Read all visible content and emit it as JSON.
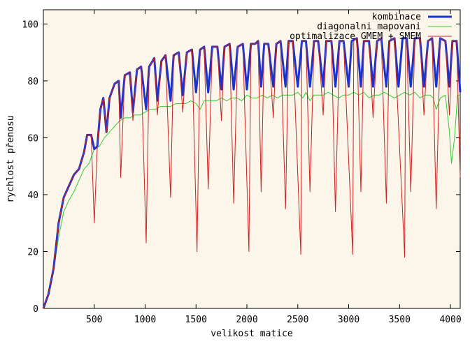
{
  "chart_data": {
    "type": "line",
    "xlabel": "velikost matice",
    "ylabel": "rychlost přenosu",
    "xlim": [
      0,
      4096
    ],
    "ylim": [
      0,
      105
    ],
    "xticks": [
      500,
      1000,
      1500,
      2000,
      2500,
      3000,
      3500,
      4000
    ],
    "yticks": [
      0,
      20,
      40,
      60,
      80,
      100
    ],
    "grid": false,
    "legend_position": "top-right",
    "plot_background": "#fcf6ea",
    "series": [
      {
        "name": "kombinace",
        "color": "#1a33cc",
        "width": 3,
        "points": [
          [
            0,
            0
          ],
          [
            50,
            5
          ],
          [
            100,
            14
          ],
          [
            150,
            30
          ],
          [
            200,
            39
          ],
          [
            250,
            43
          ],
          [
            300,
            47
          ],
          [
            350,
            49
          ],
          [
            400,
            55
          ],
          [
            430,
            61
          ],
          [
            470,
            61
          ],
          [
            500,
            56
          ],
          [
            530,
            57
          ],
          [
            560,
            70
          ],
          [
            590,
            74
          ],
          [
            620,
            62
          ],
          [
            650,
            74
          ],
          [
            700,
            79
          ],
          [
            740,
            80
          ],
          [
            760,
            67
          ],
          [
            800,
            82
          ],
          [
            850,
            83
          ],
          [
            880,
            69
          ],
          [
            920,
            84
          ],
          [
            960,
            85
          ],
          [
            1010,
            70
          ],
          [
            1040,
            85
          ],
          [
            1090,
            88
          ],
          [
            1120,
            73
          ],
          [
            1160,
            87
          ],
          [
            1200,
            89
          ],
          [
            1250,
            73
          ],
          [
            1280,
            89
          ],
          [
            1330,
            90
          ],
          [
            1370,
            75
          ],
          [
            1410,
            90
          ],
          [
            1460,
            91
          ],
          [
            1500,
            76
          ],
          [
            1540,
            91
          ],
          [
            1580,
            92
          ],
          [
            1620,
            76
          ],
          [
            1660,
            92
          ],
          [
            1710,
            92
          ],
          [
            1750,
            77
          ],
          [
            1780,
            92
          ],
          [
            1830,
            93
          ],
          [
            1870,
            77
          ],
          [
            1910,
            92
          ],
          [
            1960,
            93
          ],
          [
            2000,
            77
          ],
          [
            2040,
            93
          ],
          [
            2080,
            93
          ],
          [
            2110,
            94
          ],
          [
            2140,
            78
          ],
          [
            2170,
            93
          ],
          [
            2210,
            93
          ],
          [
            2260,
            78
          ],
          [
            2290,
            93
          ],
          [
            2330,
            94
          ],
          [
            2380,
            78
          ],
          [
            2410,
            94
          ],
          [
            2450,
            94
          ],
          [
            2500,
            78
          ],
          [
            2540,
            94
          ],
          [
            2580,
            94
          ],
          [
            2620,
            78
          ],
          [
            2660,
            94
          ],
          [
            2700,
            94
          ],
          [
            2750,
            78
          ],
          [
            2780,
            94
          ],
          [
            2830,
            94
          ],
          [
            2870,
            78
          ],
          [
            2910,
            94
          ],
          [
            2950,
            94
          ],
          [
            3000,
            78
          ],
          [
            3030,
            94
          ],
          [
            3080,
            95
          ],
          [
            3120,
            78
          ],
          [
            3150,
            94
          ],
          [
            3200,
            94
          ],
          [
            3240,
            78
          ],
          [
            3280,
            94
          ],
          [
            3320,
            95
          ],
          [
            3370,
            78
          ],
          [
            3400,
            94
          ],
          [
            3450,
            95
          ],
          [
            3490,
            78
          ],
          [
            3530,
            95
          ],
          [
            3570,
            95
          ],
          [
            3610,
            78
          ],
          [
            3650,
            95
          ],
          [
            3700,
            95
          ],
          [
            3740,
            78
          ],
          [
            3780,
            94
          ],
          [
            3820,
            95
          ],
          [
            3860,
            78
          ],
          [
            3900,
            95
          ],
          [
            3950,
            94
          ],
          [
            3990,
            78
          ],
          [
            4020,
            94
          ],
          [
            4060,
            94
          ],
          [
            4096,
            76
          ]
        ]
      },
      {
        "name": "diagonalni mapovani",
        "color": "#33cc33",
        "width": 1,
        "points": [
          [
            0,
            0
          ],
          [
            50,
            5
          ],
          [
            100,
            13
          ],
          [
            150,
            25
          ],
          [
            200,
            34
          ],
          [
            250,
            38
          ],
          [
            300,
            41
          ],
          [
            350,
            45
          ],
          [
            400,
            49
          ],
          [
            450,
            51
          ],
          [
            500,
            56
          ],
          [
            550,
            57
          ],
          [
            600,
            60
          ],
          [
            650,
            62
          ],
          [
            700,
            64
          ],
          [
            750,
            66
          ],
          [
            800,
            67
          ],
          [
            850,
            67
          ],
          [
            900,
            68
          ],
          [
            950,
            68
          ],
          [
            1000,
            69
          ],
          [
            1050,
            70
          ],
          [
            1100,
            70
          ],
          [
            1150,
            71
          ],
          [
            1200,
            71
          ],
          [
            1250,
            71
          ],
          [
            1300,
            72
          ],
          [
            1350,
            72
          ],
          [
            1400,
            72
          ],
          [
            1450,
            73
          ],
          [
            1500,
            72
          ],
          [
            1540,
            70
          ],
          [
            1580,
            73
          ],
          [
            1650,
            73
          ],
          [
            1700,
            73
          ],
          [
            1750,
            74
          ],
          [
            1800,
            73
          ],
          [
            1850,
            74
          ],
          [
            1900,
            74
          ],
          [
            1950,
            73
          ],
          [
            2000,
            75
          ],
          [
            2050,
            74
          ],
          [
            2100,
            74
          ],
          [
            2150,
            75
          ],
          [
            2200,
            74
          ],
          [
            2250,
            75
          ],
          [
            2300,
            74
          ],
          [
            2350,
            75
          ],
          [
            2400,
            75
          ],
          [
            2450,
            75
          ],
          [
            2500,
            76
          ],
          [
            2550,
            74
          ],
          [
            2580,
            76
          ],
          [
            2620,
            73
          ],
          [
            2660,
            75
          ],
          [
            2700,
            75
          ],
          [
            2750,
            75
          ],
          [
            2800,
            76
          ],
          [
            2850,
            75
          ],
          [
            2900,
            74
          ],
          [
            2950,
            75
          ],
          [
            3000,
            75
          ],
          [
            3050,
            76
          ],
          [
            3100,
            75
          ],
          [
            3150,
            76
          ],
          [
            3200,
            74
          ],
          [
            3250,
            75
          ],
          [
            3300,
            75
          ],
          [
            3350,
            76
          ],
          [
            3400,
            75
          ],
          [
            3450,
            74
          ],
          [
            3500,
            75
          ],
          [
            3550,
            76
          ],
          [
            3600,
            75
          ],
          [
            3650,
            76
          ],
          [
            3700,
            74
          ],
          [
            3750,
            75
          ],
          [
            3800,
            75
          ],
          [
            3830,
            74
          ],
          [
            3860,
            70
          ],
          [
            3900,
            74
          ],
          [
            3950,
            75
          ],
          [
            3990,
            62
          ],
          [
            4010,
            51
          ],
          [
            4040,
            60
          ],
          [
            4070,
            75
          ],
          [
            4096,
            75
          ]
        ]
      },
      {
        "name": "optimalizace GMEM + SMEM",
        "color": "#cc2222",
        "width": 1,
        "points": [
          [
            0,
            0
          ],
          [
            50,
            5
          ],
          [
            100,
            14
          ],
          [
            150,
            30
          ],
          [
            200,
            39
          ],
          [
            250,
            43
          ],
          [
            300,
            47
          ],
          [
            350,
            49
          ],
          [
            400,
            55
          ],
          [
            430,
            61
          ],
          [
            470,
            61
          ],
          [
            500,
            30
          ],
          [
            530,
            57
          ],
          [
            560,
            70
          ],
          [
            590,
            74
          ],
          [
            620,
            62
          ],
          [
            650,
            74
          ],
          [
            700,
            79
          ],
          [
            740,
            80
          ],
          [
            760,
            46
          ],
          [
            800,
            82
          ],
          [
            850,
            83
          ],
          [
            880,
            66
          ],
          [
            920,
            84
          ],
          [
            960,
            85
          ],
          [
            1010,
            23
          ],
          [
            1040,
            85
          ],
          [
            1090,
            88
          ],
          [
            1120,
            68
          ],
          [
            1160,
            87
          ],
          [
            1200,
            89
          ],
          [
            1250,
            39
          ],
          [
            1280,
            89
          ],
          [
            1330,
            90
          ],
          [
            1370,
            69
          ],
          [
            1410,
            90
          ],
          [
            1460,
            91
          ],
          [
            1510,
            20
          ],
          [
            1540,
            91
          ],
          [
            1580,
            92
          ],
          [
            1620,
            42
          ],
          [
            1660,
            92
          ],
          [
            1710,
            92
          ],
          [
            1750,
            66
          ],
          [
            1780,
            92
          ],
          [
            1830,
            93
          ],
          [
            1870,
            37
          ],
          [
            1910,
            92
          ],
          [
            1960,
            93
          ],
          [
            2020,
            20
          ],
          [
            2040,
            93
          ],
          [
            2080,
            93
          ],
          [
            2110,
            94
          ],
          [
            2140,
            41
          ],
          [
            2170,
            93
          ],
          [
            2210,
            93
          ],
          [
            2260,
            67
          ],
          [
            2290,
            93
          ],
          [
            2330,
            94
          ],
          [
            2380,
            35
          ],
          [
            2410,
            94
          ],
          [
            2450,
            94
          ],
          [
            2530,
            19
          ],
          [
            2540,
            94
          ],
          [
            2580,
            94
          ],
          [
            2620,
            41
          ],
          [
            2660,
            94
          ],
          [
            2700,
            94
          ],
          [
            2750,
            68
          ],
          [
            2780,
            94
          ],
          [
            2830,
            94
          ],
          [
            2870,
            34
          ],
          [
            2910,
            94
          ],
          [
            2950,
            94
          ],
          [
            3040,
            19
          ],
          [
            3050,
            94
          ],
          [
            3080,
            95
          ],
          [
            3120,
            41
          ],
          [
            3150,
            94
          ],
          [
            3200,
            94
          ],
          [
            3240,
            67
          ],
          [
            3280,
            94
          ],
          [
            3320,
            95
          ],
          [
            3370,
            37
          ],
          [
            3400,
            94
          ],
          [
            3450,
            95
          ],
          [
            3550,
            18
          ],
          [
            3560,
            95
          ],
          [
            3570,
            95
          ],
          [
            3610,
            41
          ],
          [
            3650,
            95
          ],
          [
            3700,
            95
          ],
          [
            3740,
            68
          ],
          [
            3780,
            94
          ],
          [
            3820,
            95
          ],
          [
            3860,
            35
          ],
          [
            3900,
            95
          ],
          [
            3950,
            94
          ],
          [
            3990,
            68
          ],
          [
            4020,
            94
          ],
          [
            4060,
            94
          ],
          [
            4096,
            46
          ]
        ]
      }
    ]
  }
}
